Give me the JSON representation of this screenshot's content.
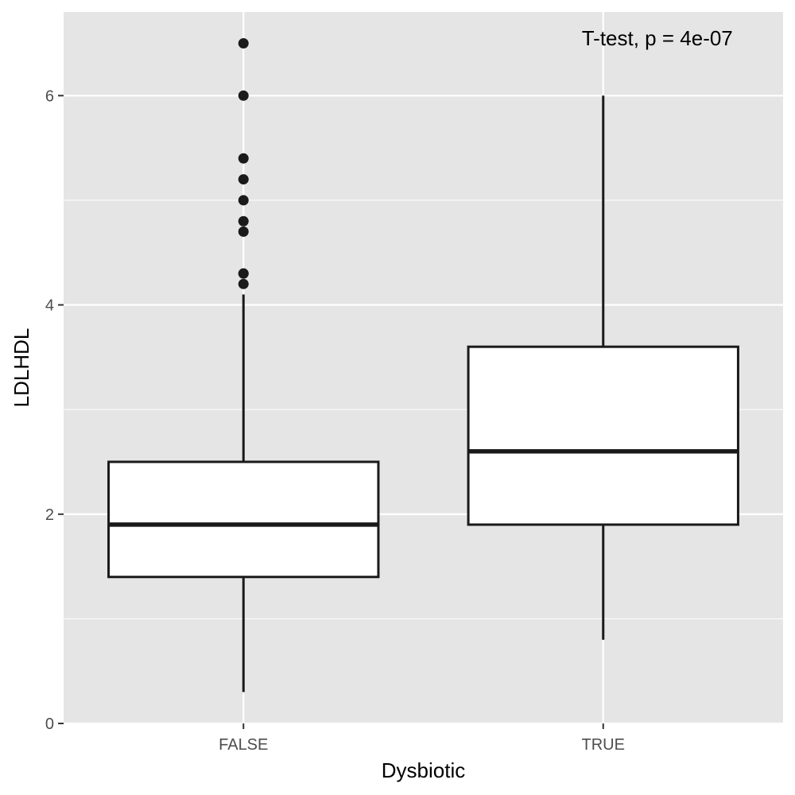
{
  "chart_data": {
    "type": "boxplot",
    "xlabel": "Dysbiotic",
    "ylabel": "LDLHDL",
    "annotation": "T-test, p = 4e-07",
    "ylim": [
      0,
      6.8
    ],
    "y_ticks": [
      0,
      2,
      4,
      6
    ],
    "categories": [
      "FALSE",
      "TRUE"
    ],
    "boxes": [
      {
        "category": "FALSE",
        "whisker_low": 0.3,
        "q1": 1.4,
        "median": 1.9,
        "q3": 2.5,
        "whisker_high": 4.1,
        "outliers": [
          4.2,
          4.3,
          4.3,
          4.7,
          4.8,
          5.0,
          5.2,
          5.4,
          6.0,
          6.5
        ]
      },
      {
        "category": "TRUE",
        "whisker_low": 0.8,
        "q1": 1.9,
        "median": 2.6,
        "q3": 3.6,
        "whisker_high": 6.0,
        "outliers": []
      }
    ],
    "grid": true,
    "colors": {
      "panel_background": "#e5e5e5",
      "grid_line": "#ffffff",
      "box_fill": "#ffffff",
      "box_stroke": "#1a1a1a",
      "outlier": "#1a1a1a"
    }
  }
}
